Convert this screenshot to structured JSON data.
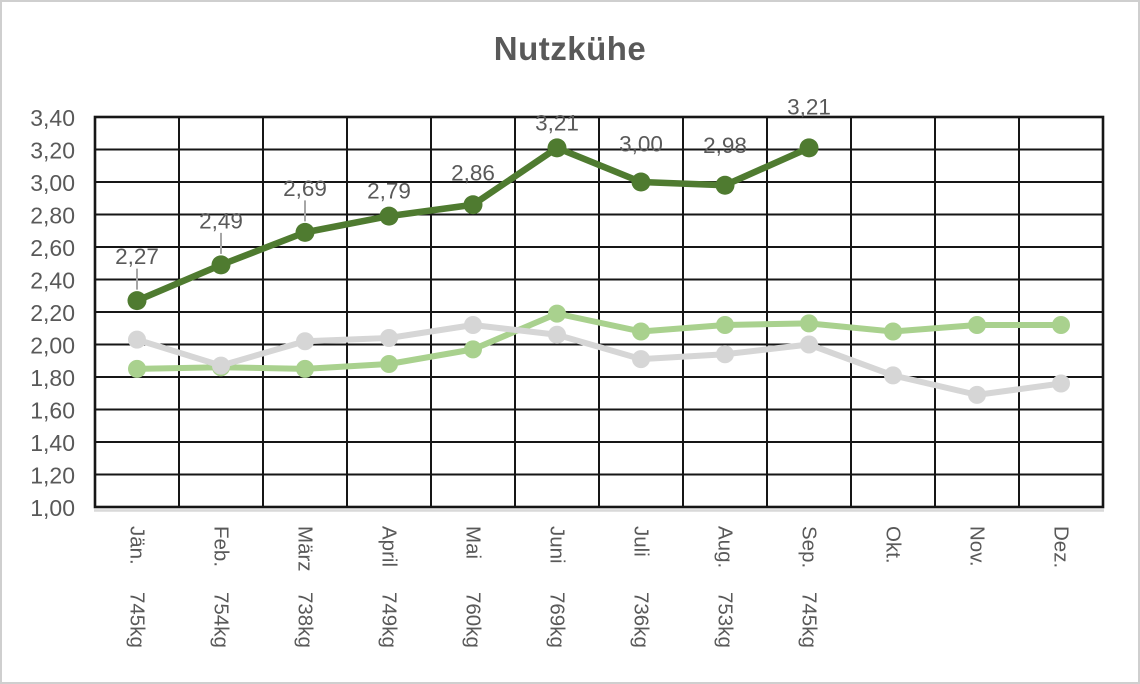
{
  "title": "Nutzkühe",
  "chart_data": {
    "type": "line",
    "title": "Nutzkühe",
    "legend": "none",
    "grid": true,
    "categories": [
      {
        "month": "Jän.",
        "weight": "745kg"
      },
      {
        "month": "Feb.",
        "weight": "754kg"
      },
      {
        "month": "März",
        "weight": "738kg"
      },
      {
        "month": "April",
        "weight": "749kg"
      },
      {
        "month": "Mai",
        "weight": "760kg"
      },
      {
        "month": "Juni",
        "weight": "769kg"
      },
      {
        "month": "Juli",
        "weight": "736kg"
      },
      {
        "month": "Aug.",
        "weight": "753kg"
      },
      {
        "month": "Sep.",
        "weight": "745kg"
      },
      {
        "month": "Okt.",
        "weight": ""
      },
      {
        "month": "Nov.",
        "weight": ""
      },
      {
        "month": "Dez.",
        "weight": ""
      }
    ],
    "y_axis": {
      "min": 1.0,
      "max": 3.4,
      "step": 0.2,
      "tick_labels": [
        "1,00",
        "1,20",
        "1,40",
        "1,60",
        "1,80",
        "2,00",
        "2,20",
        "2,40",
        "2,60",
        "2,80",
        "3,00",
        "3,20",
        "3,40"
      ]
    },
    "series": [
      {
        "name": "light-green-series",
        "color": "#a9d18e",
        "values": [
          1.85,
          1.86,
          1.85,
          1.88,
          1.97,
          2.19,
          2.08,
          2.12,
          2.13,
          2.08,
          2.12,
          2.12
        ],
        "data_labels": null
      },
      {
        "name": "gray-series",
        "color": "#d6d6d6",
        "values": [
          2.03,
          1.87,
          2.02,
          2.04,
          2.12,
          2.06,
          1.91,
          1.94,
          2.0,
          1.81,
          1.69,
          1.76
        ],
        "data_labels": null
      },
      {
        "name": "dark-green-series",
        "color": "#4f7b30",
        "values": [
          2.27,
          2.49,
          2.69,
          2.79,
          2.86,
          3.21,
          3.0,
          2.98,
          3.21,
          null,
          null,
          null
        ],
        "data_labels": [
          "2,27",
          "2,49",
          "2,69",
          "2,79",
          "2,86",
          "3,21",
          "3,00",
          "2,98",
          "3,21"
        ],
        "label_offsets": [
          -44,
          -44,
          -44,
          -25,
          -32,
          -25,
          -38,
          -40,
          -41
        ],
        "leader_lines": [
          true,
          true,
          true,
          false,
          false,
          false,
          false,
          false,
          false
        ]
      }
    ]
  },
  "styles": {
    "grid_color": "#161616",
    "border_color": "#161616",
    "axis_underline_color": "#d9d9d9",
    "axis_text_color": "#595959",
    "data_label_color": "#595959",
    "title_color": "#595959",
    "leader_color": "#a6a6a6",
    "frame_border_color": "#cfcfcf",
    "background": "#ffffff"
  }
}
